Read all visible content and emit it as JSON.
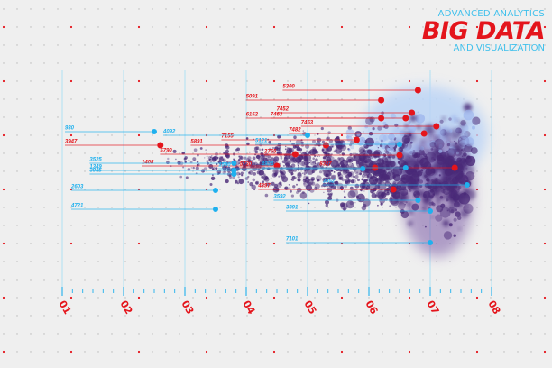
{
  "brand": {
    "line1": "ADVANCED ANALYTICS",
    "title": "BIG DATA",
    "line2": "AND VISUALIZATION"
  },
  "colors": {
    "red": "#e4151c",
    "blue": "#1fb0ee",
    "purple": "#4a2a78",
    "grid": "#9fdcf4",
    "background": "#efefef"
  },
  "chart_data": {
    "type": "scatter",
    "x_ticks": [
      "01",
      "02",
      "03",
      "04",
      "05",
      "06",
      "07",
      "08"
    ],
    "red_callouts": [
      {
        "label": "5300",
        "x": 6.8,
        "y": 100
      },
      {
        "label": "5091",
        "x": 6.2,
        "y": 111
      },
      {
        "label": "7452",
        "x": 6.7,
        "y": 125
      },
      {
        "label": "6152",
        "x": 6.2,
        "y": 131
      },
      {
        "label": "7463",
        "x": 6.6,
        "y": 131
      },
      {
        "label": "7463",
        "x": 7.1,
        "y": 140
      },
      {
        "label": "7482",
        "x": 6.9,
        "y": 148
      },
      {
        "label": "7155",
        "x": 5.8,
        "y": 155
      },
      {
        "label": "3947",
        "x": 2.6,
        "y": 161
      },
      {
        "label": "5891",
        "x": 5.3,
        "y": 161
      },
      {
        "label": "2765",
        "x": 6.5,
        "y": 172
      },
      {
        "label": "5790",
        "x": 4.8,
        "y": 171
      },
      {
        "label": "1408",
        "x": 4.5,
        "y": 184
      },
      {
        "label": "5730",
        "x": 6.1,
        "y": 186
      },
      {
        "label": "8327",
        "x": 7.4,
        "y": 186
      },
      {
        "label": "4897",
        "x": 6.4,
        "y": 210
      }
    ],
    "blue_callouts": [
      {
        "label": "930",
        "x": 2.5,
        "y": 146
      },
      {
        "label": "4092",
        "x": 5.0,
        "y": 150
      },
      {
        "label": "5121",
        "x": 6.5,
        "y": 160
      },
      {
        "label": "3525",
        "x": 3.8,
        "y": 181
      },
      {
        "label": "1349",
        "x": 3.8,
        "y": 189
      },
      {
        "label": "1590",
        "x": 5.9,
        "y": 187
      },
      {
        "label": "3935",
        "x": 3.8,
        "y": 193
      },
      {
        "label": "2603",
        "x": 3.5,
        "y": 211
      },
      {
        "label": "4924",
        "x": 6.6,
        "y": 186
      },
      {
        "label": "3952",
        "x": 7.6,
        "y": 205
      },
      {
        "label": "3592",
        "x": 6.8,
        "y": 222
      },
      {
        "label": "4721",
        "x": 3.5,
        "y": 232
      },
      {
        "label": "3391",
        "x": 7.0,
        "y": 234
      },
      {
        "label": "7101",
        "x": 7.0,
        "y": 269
      }
    ]
  }
}
